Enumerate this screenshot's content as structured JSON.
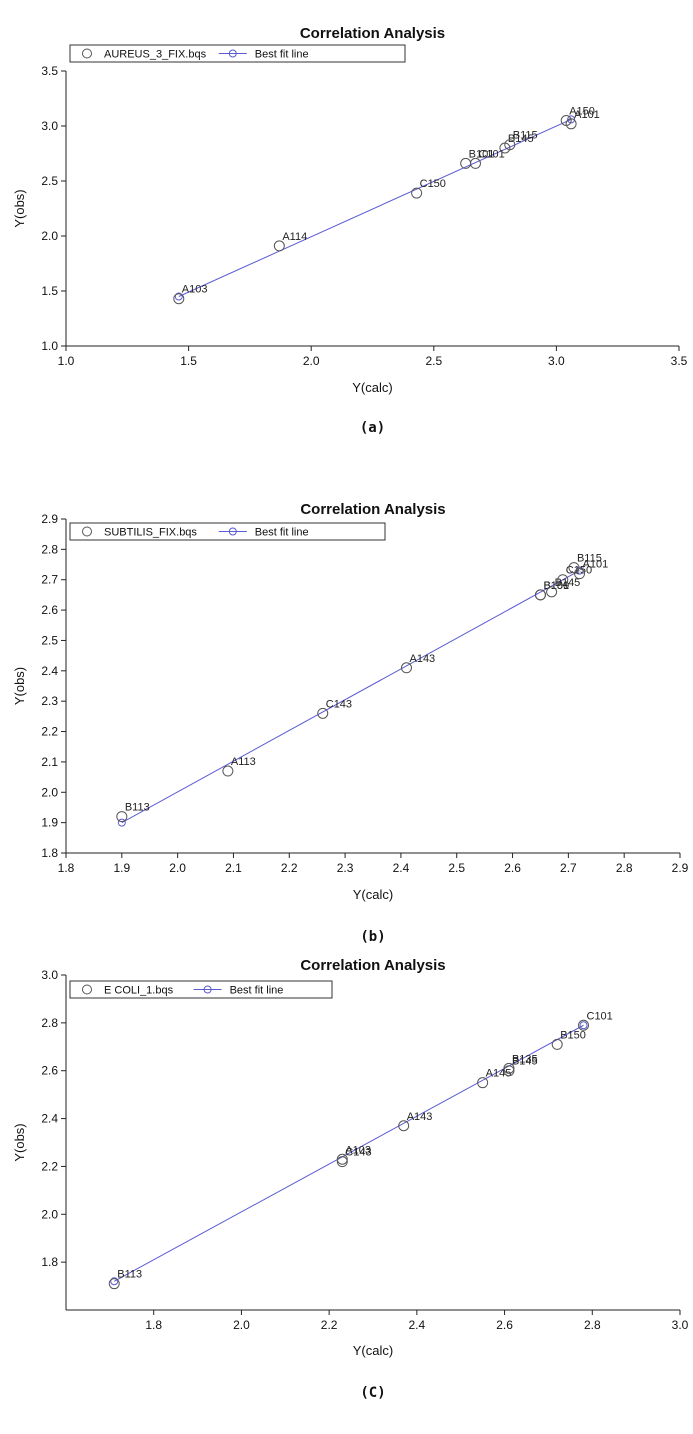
{
  "colors": {
    "fit_line": "#5b5bd6",
    "marker": "#555555",
    "axis": "#222222"
  },
  "chart_data": [
    {
      "type": "scatter",
      "title": "Correlation Analysis",
      "caption": "(a)",
      "xlabel": "Y(calc)",
      "ylabel": "Y(obs)",
      "xlim": [
        1.0,
        3.5
      ],
      "ylim": [
        1.0,
        3.5
      ],
      "xticks": [
        "1.0",
        "1.5",
        "2.0",
        "2.5",
        "3.0",
        "3.5"
      ],
      "yticks": [
        "1.0",
        "1.5",
        "2.0",
        "2.5",
        "3.0",
        "3.5"
      ],
      "legend": {
        "placement": "top-left",
        "series_name": "AUREUS_3_FIX.bqs",
        "fit_name": "Best fit line"
      },
      "points": [
        {
          "x": 1.46,
          "y": 1.43,
          "label": "A103"
        },
        {
          "x": 1.87,
          "y": 1.91,
          "label": "A114"
        },
        {
          "x": 2.43,
          "y": 2.39,
          "label": "C150"
        },
        {
          "x": 2.63,
          "y": 2.66,
          "label": "B101"
        },
        {
          "x": 2.67,
          "y": 2.66,
          "label": "C101"
        },
        {
          "x": 2.79,
          "y": 2.8,
          "label": "B145"
        },
        {
          "x": 2.81,
          "y": 2.83,
          "label": "B115"
        },
        {
          "x": 3.04,
          "y": 3.05,
          "label": "A150"
        },
        {
          "x": 3.06,
          "y": 3.02,
          "label": "A101"
        }
      ],
      "fit": {
        "x": [
          1.46,
          3.06
        ],
        "y": [
          1.45,
          3.06
        ]
      }
    },
    {
      "type": "scatter",
      "title": "Correlation Analysis",
      "caption": "(b)",
      "xlabel": "Y(calc)",
      "ylabel": "Y(obs)",
      "xlim": [
        1.8,
        2.9
      ],
      "ylim": [
        1.8,
        2.9
      ],
      "xticks": [
        "1.8",
        "1.9",
        "2.0",
        "2.1",
        "2.2",
        "2.3",
        "2.4",
        "2.5",
        "2.6",
        "2.7",
        "2.8",
        "2.9"
      ],
      "yticks": [
        "1.8",
        "1.9",
        "2.0",
        "2.1",
        "2.2",
        "2.3",
        "2.4",
        "2.5",
        "2.6",
        "2.7",
        "2.8",
        "2.9"
      ],
      "legend": {
        "placement": "top-left",
        "series_name": "SUBTILIS_FIX.bqs",
        "fit_name": "Best fit line"
      },
      "points": [
        {
          "x": 1.9,
          "y": 1.92,
          "label": "B113"
        },
        {
          "x": 2.09,
          "y": 2.07,
          "label": "A113"
        },
        {
          "x": 2.26,
          "y": 2.26,
          "label": "C143"
        },
        {
          "x": 2.41,
          "y": 2.41,
          "label": "A143"
        },
        {
          "x": 2.65,
          "y": 2.65,
          "label": "B150"
        },
        {
          "x": 2.65,
          "y": 2.65,
          "label": "B101"
        },
        {
          "x": 2.67,
          "y": 2.66,
          "label": "B145"
        },
        {
          "x": 2.69,
          "y": 2.7,
          "label": "C150"
        },
        {
          "x": 2.71,
          "y": 2.74,
          "label": "B115"
        },
        {
          "x": 2.72,
          "y": 2.72,
          "label": "A101"
        }
      ],
      "fit": {
        "x": [
          1.9,
          2.72
        ],
        "y": [
          1.9,
          2.73
        ]
      }
    },
    {
      "type": "scatter",
      "title": "Correlation Analysis",
      "caption": "(C)",
      "xlabel": "Y(calc)",
      "ylabel": "Y(obs)",
      "xlim": [
        1.6,
        3.0
      ],
      "ylim": [
        1.6,
        3.0
      ],
      "xticks": [
        "1.8",
        "2.0",
        "2.2",
        "2.4",
        "2.6",
        "2.8",
        "3.0"
      ],
      "yticks": [
        "1.8",
        "2.0",
        "2.2",
        "2.4",
        "2.6",
        "2.8",
        "3.0"
      ],
      "legend": {
        "placement": "top-left",
        "series_name": "E COLI_1.bqs",
        "fit_name": "Best fit line"
      },
      "points": [
        {
          "x": 1.71,
          "y": 1.71,
          "label": "B113"
        },
        {
          "x": 2.23,
          "y": 2.22,
          "label": "C143"
        },
        {
          "x": 2.23,
          "y": 2.23,
          "label": "A103"
        },
        {
          "x": 2.37,
          "y": 2.37,
          "label": "A143"
        },
        {
          "x": 2.55,
          "y": 2.55,
          "label": "A145"
        },
        {
          "x": 2.61,
          "y": 2.6,
          "label": "B145"
        },
        {
          "x": 2.61,
          "y": 2.61,
          "label": "B135"
        },
        {
          "x": 2.72,
          "y": 2.71,
          "label": "B150"
        },
        {
          "x": 2.78,
          "y": 2.79,
          "label": "C101"
        }
      ],
      "fit": {
        "x": [
          1.71,
          2.78
        ],
        "y": [
          1.72,
          2.79
        ]
      }
    }
  ]
}
